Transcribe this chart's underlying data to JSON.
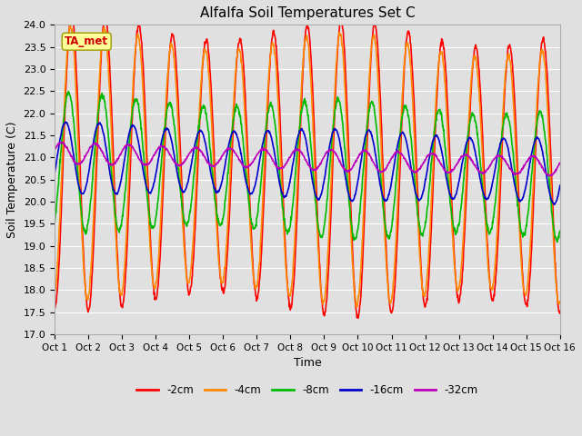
{
  "title": "Alfalfa Soil Temperatures Set C",
  "xlabel": "Time",
  "ylabel": "Soil Temperature (C)",
  "ylim": [
    17.0,
    24.0
  ],
  "yticks": [
    17.0,
    17.5,
    18.0,
    18.5,
    19.0,
    19.5,
    20.0,
    20.5,
    21.0,
    21.5,
    22.0,
    22.5,
    23.0,
    23.5,
    24.0
  ],
  "xtick_labels": [
    "Oct 1",
    "Oct 2",
    "Oct 3",
    "Oct 4",
    "Oct 5",
    "Oct 6",
    "Oct 7",
    "Oct 8",
    "Oct 9",
    "Oct 10",
    "Oct 11",
    "Oct 12",
    "Oct 13",
    "Oct 14",
    "Oct 15",
    "Oct 16"
  ],
  "n_days": 15,
  "fig_bg_color": "#e0e0e0",
  "plot_bg_color": "#e0e0e0",
  "grid_color": "#ffffff",
  "series": [
    {
      "label": "-2cm",
      "color": "#ff0000",
      "amp": 3.1,
      "mean": 20.9,
      "phase": 0.0,
      "lw": 1.2
    },
    {
      "label": "-4cm",
      "color": "#ff8800",
      "amp": 2.85,
      "mean": 20.9,
      "phase": 0.18,
      "lw": 1.2
    },
    {
      "label": "-8cm",
      "color": "#00bb00",
      "amp": 1.45,
      "mean": 20.9,
      "phase": 0.55,
      "lw": 1.2
    },
    {
      "label": "-16cm",
      "color": "#0000cc",
      "amp": 0.75,
      "mean": 21.0,
      "phase": 1.1,
      "lw": 1.2
    },
    {
      "label": "-32cm",
      "color": "#bb00bb",
      "amp": 0.22,
      "mean": 21.1,
      "phase": 1.9,
      "lw": 1.2
    }
  ],
  "annotation_text": "TA_met",
  "annotation_color": "#cc0000",
  "annotation_bg": "#ffff99",
  "annotation_edge": "#999900",
  "points_per_day": 96,
  "figsize": [
    6.4,
    4.8
  ],
  "dpi": 100
}
